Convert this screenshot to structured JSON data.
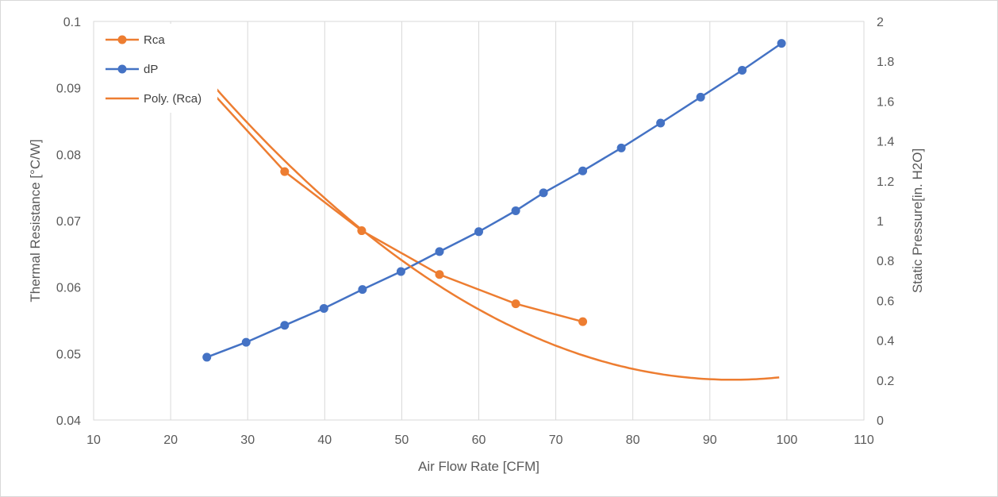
{
  "chart_data": {
    "type": "line",
    "title": "",
    "xlabel": "Air Flow Rate [CFM]",
    "ylabel": "Thermal Resistance [°C/W]",
    "y2label": "Static Pressure[in. H2O]",
    "xlim": [
      10,
      110
    ],
    "ylim": [
      0.04,
      0.1
    ],
    "y2lim": [
      0,
      2
    ],
    "xticks": [
      "10",
      "20",
      "30",
      "40",
      "50",
      "60",
      "70",
      "80",
      "90",
      "100",
      "110"
    ],
    "yticks": [
      "0.04",
      "0.05",
      "0.06",
      "0.07",
      "0.08",
      "0.09",
      "0.1"
    ],
    "y2ticks": [
      "0",
      "0.2",
      "0.4",
      "0.6",
      "0.8",
      "1",
      "1.2",
      "1.4",
      "1.6",
      "1.8",
      "2"
    ],
    "grid": "vertical",
    "legend_position": "top-left",
    "series": [
      {
        "name": "Rca",
        "axis": "left",
        "color": "#ED7D31",
        "marker": "circle",
        "x": [
          25,
          34.8,
          44.8,
          54.9,
          64.8,
          73.5
        ],
        "y": [
          0.0898,
          0.0774,
          0.0685,
          0.0619,
          0.0575,
          0.0548
        ]
      },
      {
        "name": "dP",
        "axis": "right",
        "color": "#4472C4",
        "marker": "circle",
        "x": [
          24.7,
          29.8,
          34.8,
          39.9,
          44.9,
          49.9,
          54.9,
          60,
          64.8,
          68.4,
          73.5,
          78.5,
          83.6,
          88.8,
          94.2,
          99.3
        ],
        "y": [
          0.315,
          0.39,
          0.475,
          0.56,
          0.655,
          0.745,
          0.845,
          0.945,
          1.05,
          1.14,
          1.25,
          1.365,
          1.49,
          1.62,
          1.755,
          1.89
        ]
      },
      {
        "name": "Poly. (Rca)",
        "axis": "left",
        "color": "#ED7D31",
        "type": "trendline",
        "x_range": [
          25,
          99.3
        ],
        "coefficients": [
          0.1303,
          -0.0018126,
          9.75e-06
        ]
      }
    ]
  }
}
